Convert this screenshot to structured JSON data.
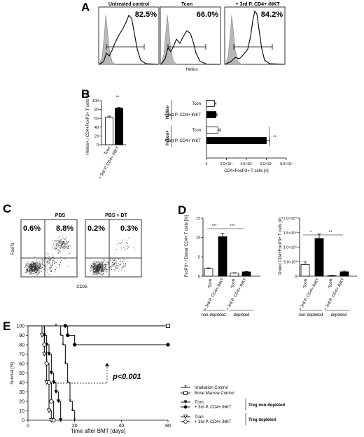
{
  "panel_labels": {
    "a": "A",
    "b": "B",
    "c": "C",
    "d": "D",
    "e": "E"
  },
  "panel_a": {
    "columns": [
      {
        "title": "Untreated control",
        "percent": "82.5%"
      },
      {
        "title": "Tcon",
        "percent": "66.0%"
      },
      {
        "title": "+ 3rd P. CD4+ iNKT",
        "percent": "84.2%"
      }
    ],
    "xlabel": "Helios"
  },
  "panel_c": {
    "columns": [
      {
        "title": "PBS",
        "ul": "0.6%",
        "ur": "8.8%"
      },
      {
        "title": "PBS + DT",
        "ul": "0.2%",
        "ur": "0.3%"
      }
    ],
    "xlabel": "CD25",
    "ylabel": "FoxP3"
  },
  "labels": {
    "tcon": "Tcon",
    "inkt": "+ 3rd P. CD4+ iNKT",
    "helios_neg": "Helios-",
    "helios_pos": "Helios+",
    "non_depleted": "non-depleted",
    "depleted": "depleted",
    "double_star": "**",
    "triple_star": "***",
    "single_star": "*",
    "pvalue": "p<0.001"
  },
  "chart_data": [
    {
      "id": "B-left",
      "type": "bar",
      "categories": [
        "Tcon",
        "+ 3rd P. CD4+ iNKT"
      ],
      "values": [
        62,
        83
      ],
      "errors": [
        3,
        1.5
      ],
      "colors": [
        "#ffffff",
        "#000000"
      ],
      "ylabel": "Helios+ / CD4+FoxP3+ T cells [%]",
      "ylim": [
        0,
        100
      ],
      "yticks": [
        "0",
        "20",
        "40",
        "60",
        "80",
        "100"
      ],
      "annotation": "**"
    },
    {
      "id": "B-right",
      "type": "bar",
      "orientation": "horizontal",
      "categories": [
        "Helios- Tcon",
        "Helios- + 3rd P. CD4+ iNKT",
        "Helios+ Tcon",
        "Helios+ + 3rd P. CD4+ iNKT"
      ],
      "values": [
        8000,
        9500,
        11500,
        60000
      ],
      "errors": [
        1500,
        1000,
        2000,
        3000
      ],
      "colors": [
        "#ffffff",
        "#000000",
        "#ffffff",
        "#000000"
      ],
      "xlabel": "CD4+FoxP3+ T cells [#]",
      "xlim": [
        0,
        80000
      ],
      "xticks": [
        "0",
        "2.0×10⁴",
        "4.0×10⁴",
        "6.0×10⁴",
        "8.0×10⁴"
      ],
      "annotation": "**"
    },
    {
      "id": "D-left",
      "type": "bar",
      "categories": [
        "Tcon",
        "+ 3rd P. CD4+ iNKT",
        "Tcon",
        "+ 3rd P. CD4+ iNKT"
      ],
      "groups": [
        "non-depleted",
        "non-depleted",
        "depleted",
        "depleted"
      ],
      "values": [
        2.0,
        10.2,
        0.8,
        1.1
      ],
      "errors": [
        0.15,
        0.9,
        0.1,
        0.1
      ],
      "colors": [
        "#ffffff",
        "#000000",
        "#ffffff",
        "#000000"
      ],
      "ylabel": "FoxP3+ / Donor CD4+ T cells [%]",
      "ylim": [
        0,
        15
      ],
      "yticks": [
        "0",
        "5",
        "10",
        "15"
      ],
      "annotations": [
        "***",
        "***"
      ]
    },
    {
      "id": "D-right",
      "type": "bar",
      "categories": [
        "Tcon",
        "+ 3rd P. CD4+ iNKT",
        "Tcon",
        "+ 3rd P. CD4+ iNKT"
      ],
      "groups": [
        "non-depleted",
        "non-depleted",
        "depleted",
        "depleted"
      ],
      "values": [
        4000,
        13000,
        200,
        1500
      ],
      "errors": [
        900,
        1500,
        100,
        300
      ],
      "colors": [
        "#ffffff",
        "#000000",
        "#ffffff",
        "#000000"
      ],
      "ylabel": "Donor CD4+FoxP3+ T cells [#]",
      "ylim": [
        0,
        20000
      ],
      "yticks": [
        "0",
        "5.0×10³",
        "1.0×10⁴",
        "1.5×10⁴",
        "2.0×10⁴"
      ],
      "annotations": [
        "*",
        "**"
      ]
    },
    {
      "id": "E",
      "type": "line",
      "step": true,
      "xlabel": "Time after BMT [days]",
      "ylabel": "Survival [%]",
      "xlim": [
        0,
        60
      ],
      "ylim": [
        0,
        100
      ],
      "xticks": [
        0,
        20,
        40,
        60
      ],
      "yticks": [
        0,
        10,
        20,
        30,
        40,
        50,
        60,
        70,
        80,
        90,
        100
      ],
      "annotation": "p<0.001",
      "legend_groups": {
        "non_depleted": "Treg non-depleted",
        "depleted": "Treg depleted"
      },
      "series": [
        {
          "name": "Irradiation Control",
          "marker": "asterisk",
          "x": [
            0,
            12,
            14,
            15,
            16,
            17,
            18,
            19,
            20
          ],
          "y": [
            100,
            100,
            90,
            80,
            60,
            40,
            20,
            10,
            0
          ]
        },
        {
          "name": "Bone Marrow Control",
          "marker": "square-open",
          "x": [
            0,
            60
          ],
          "y": [
            100,
            100
          ]
        },
        {
          "name": "Tcon",
          "group": "non_depleted",
          "marker": "triangle-filled",
          "x": [
            0,
            7,
            8,
            9,
            10,
            11,
            12,
            13,
            14
          ],
          "y": [
            100,
            90,
            80,
            70,
            50,
            40,
            30,
            20,
            0
          ]
        },
        {
          "name": "+ 3rd P. CD4+ iNKT",
          "group": "non_depleted",
          "marker": "circle-filled",
          "x": [
            0,
            16,
            17,
            20,
            60
          ],
          "y": [
            100,
            100,
            90,
            80,
            80
          ]
        },
        {
          "name": "Tcon",
          "group": "depleted",
          "marker": "triangle-open",
          "x": [
            0,
            6,
            7,
            8,
            9,
            10
          ],
          "y": [
            100,
            90,
            70,
            40,
            10,
            0
          ]
        },
        {
          "name": "+ 3rd P. CD4+ iNKT",
          "group": "depleted",
          "marker": "circle-open",
          "x": [
            0,
            7,
            8,
            9,
            10,
            11
          ],
          "y": [
            100,
            80,
            60,
            40,
            20,
            0
          ]
        }
      ]
    }
  ]
}
